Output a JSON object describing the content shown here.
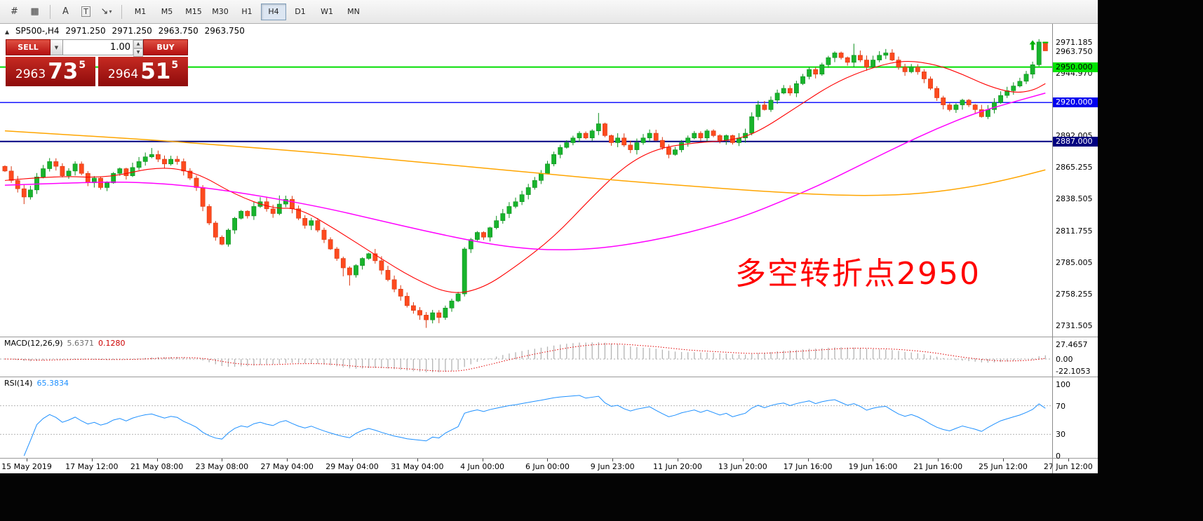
{
  "toolbar": {
    "tools": [
      {
        "name": "crosshair-tool",
        "glyph": "#"
      },
      {
        "name": "grid-tool",
        "glyph": "▦"
      },
      {
        "name": "text-tool",
        "glyph": "A"
      },
      {
        "name": "label-tool",
        "glyph": "T"
      },
      {
        "name": "arrow-objects-tool",
        "glyph": "↘"
      }
    ],
    "caret_glyph": "▾",
    "timeframes": [
      "M1",
      "M5",
      "M15",
      "M30",
      "H1",
      "H4",
      "D1",
      "W1",
      "MN"
    ],
    "active_timeframe": "H4"
  },
  "header": {
    "collapse_icon": "▲",
    "symbol": "SP500-,H4",
    "open": "2971.250",
    "high": "2971.250",
    "low": "2963.750",
    "close": "2963.750"
  },
  "trade_panel": {
    "sell_label": "SELL",
    "buy_label": "BUY",
    "volume": "1.00",
    "dropdown_caret": "▼",
    "up_glyph": "▲",
    "down_glyph": "▼",
    "bid": {
      "main": "2963",
      "big": "73",
      "pip": "5"
    },
    "ask": {
      "main": "2964",
      "big": "51",
      "pip": "5"
    },
    "panel_red": "#b01010"
  },
  "annotation": {
    "text": "多空转折点2950",
    "color": "#ff0000"
  },
  "hlines": [
    {
      "price": 2950.0,
      "label": "2950.000",
      "line_color": "#00dd00",
      "tag_bg": "#00e400",
      "tag_color": "#000000",
      "width": 2
    },
    {
      "price": 2920.0,
      "label": "2920.000",
      "line_color": "#0000ff",
      "tag_bg": "#0000ee",
      "tag_color": "#ffffff",
      "width": 1.4
    },
    {
      "price": 2887.0,
      "label": "2887.000",
      "line_color": "#000080",
      "tag_bg": "#000080",
      "tag_color": "#ffffff",
      "width": 2
    }
  ],
  "price_axis": {
    "ticks": [
      {
        "label": "2971.185",
        "price": 2971.185
      },
      {
        "label": "2963.750",
        "price": 2963.75
      },
      {
        "label": "2944.970",
        "price": 2944.97
      },
      {
        "label": "2892.005",
        "price": 2892.005
      },
      {
        "label": "2865.255",
        "price": 2865.255
      },
      {
        "label": "2838.505",
        "price": 2838.505
      },
      {
        "label": "2811.755",
        "price": 2811.755
      },
      {
        "label": "2785.005",
        "price": 2785.005
      },
      {
        "label": "2758.255",
        "price": 2758.255
      },
      {
        "label": "2731.505",
        "price": 2731.505
      }
    ]
  },
  "indicators": {
    "macd": {
      "name": "MACD(12,26,9)",
      "value_main": "5.6371",
      "value_signal": "0.1280",
      "axis_labels": [
        "27.4657",
        "0.00",
        "-22.1053"
      ],
      "histogram_color": "#b4b4b4",
      "signal_color": "#e00000",
      "params": [
        12,
        26,
        9
      ]
    },
    "rsi": {
      "name": "RSI(14)",
      "value": "65.3834",
      "axis_labels": [
        "100",
        "70",
        "30",
        "0"
      ],
      "levels": [
        70,
        30
      ],
      "line_color": "#1e90ff",
      "period": 14
    }
  },
  "time_axis": [
    "15 May 2019",
    "17 May 12:00",
    "21 May 08:00",
    "23 May 08:00",
    "27 May 04:00",
    "29 May 04:00",
    "31 May 04:00",
    "4 Jun 00:00",
    "6 Jun 00:00",
    "9 Jun 23:00",
    "11 Jun 20:00",
    "13 Jun 20:00",
    "17 Jun 16:00",
    "19 Jun 16:00",
    "21 Jun 16:00",
    "25 Jun 12:00",
    "27 Jun 12:00"
  ],
  "chart_data": {
    "type": "candlestick",
    "symbol": "SP500-",
    "period": "H4",
    "candle_count": 164,
    "visible_price_range": [
      2722,
      2984
    ],
    "bull_color": "#18b42c",
    "bear_color": "#fd4a1e",
    "current_bar": {
      "open": 2971.25,
      "high": 2971.25,
      "low": 2963.75,
      "close": 2963.75
    },
    "closes": [
      2862,
      2854,
      2847,
      2840,
      2846,
      2857,
      2864,
      2870,
      2866,
      2858,
      2862,
      2868,
      2860,
      2852,
      2856,
      2848,
      2852,
      2860,
      2864,
      2858,
      2865,
      2870,
      2874,
      2876,
      2872,
      2868,
      2872,
      2870,
      2862,
      2856,
      2848,
      2832,
      2818,
      2806,
      2800,
      2812,
      2822,
      2828,
      2824,
      2832,
      2836,
      2830,
      2826,
      2834,
      2838,
      2830,
      2822,
      2816,
      2820,
      2812,
      2804,
      2796,
      2788,
      2780,
      2774,
      2782,
      2788,
      2792,
      2786,
      2778,
      2770,
      2762,
      2756,
      2748,
      2744,
      2740,
      2736,
      2742,
      2738,
      2746,
      2752,
      2758,
      2796,
      2804,
      2810,
      2806,
      2814,
      2820,
      2826,
      2832,
      2836,
      2842,
      2848,
      2854,
      2860,
      2868,
      2876,
      2882,
      2886,
      2890,
      2894,
      2890,
      2896,
      2902,
      2892,
      2886,
      2890,
      2884,
      2880,
      2886,
      2890,
      2894,
      2888,
      2882,
      2876,
      2880,
      2886,
      2890,
      2894,
      2890,
      2896,
      2892,
      2888,
      2892,
      2886,
      2890,
      2894,
      2908,
      2918,
      2914,
      2922,
      2928,
      2932,
      2928,
      2936,
      2942,
      2948,
      2944,
      2952,
      2958,
      2962,
      2958,
      2954,
      2960,
      2956,
      2950,
      2956,
      2960,
      2962,
      2956,
      2950,
      2946,
      2950,
      2946,
      2940,
      2932,
      2924,
      2918,
      2914,
      2918,
      2922,
      2918,
      2914,
      2908,
      2914,
      2920,
      2926,
      2930,
      2934,
      2938,
      2944,
      2952,
      2971.25,
      2963.75
    ],
    "moving_averages": [
      {
        "name": "fast-ma-red",
        "color": "#ff0000",
        "width": 1.1,
        "points": [
          [
            0,
            2854
          ],
          [
            8,
            2858
          ],
          [
            16,
            2856
          ],
          [
            24,
            2866
          ],
          [
            30,
            2861
          ],
          [
            36,
            2842
          ],
          [
            42,
            2830
          ],
          [
            46,
            2831
          ],
          [
            52,
            2812
          ],
          [
            58,
            2791
          ],
          [
            64,
            2771
          ],
          [
            70,
            2757
          ],
          [
            75,
            2763
          ],
          [
            80,
            2781
          ],
          [
            86,
            2806
          ],
          [
            92,
            2840
          ],
          [
            97,
            2866
          ],
          [
            102,
            2881
          ],
          [
            108,
            2886
          ],
          [
            114,
            2888
          ],
          [
            118,
            2895
          ],
          [
            124,
            2916
          ],
          [
            130,
            2937
          ],
          [
            136,
            2950
          ],
          [
            141,
            2956
          ],
          [
            146,
            2952
          ],
          [
            150,
            2944
          ],
          [
            154,
            2934
          ],
          [
            158,
            2928
          ],
          [
            161,
            2930
          ],
          [
            163,
            2936
          ]
        ]
      },
      {
        "name": "mid-ma-magenta",
        "color": "#ff00ff",
        "width": 1.5,
        "points": [
          [
            0,
            2850
          ],
          [
            10,
            2852
          ],
          [
            20,
            2853
          ],
          [
            30,
            2849
          ],
          [
            40,
            2841
          ],
          [
            50,
            2831
          ],
          [
            58,
            2821
          ],
          [
            66,
            2811
          ],
          [
            74,
            2802
          ],
          [
            80,
            2797
          ],
          [
            86,
            2795
          ],
          [
            92,
            2796
          ],
          [
            98,
            2800
          ],
          [
            104,
            2806
          ],
          [
            110,
            2814
          ],
          [
            116,
            2824
          ],
          [
            122,
            2837
          ],
          [
            128,
            2851
          ],
          [
            134,
            2867
          ],
          [
            140,
            2883
          ],
          [
            146,
            2898
          ],
          [
            152,
            2911
          ],
          [
            157,
            2919
          ],
          [
            163,
            2928
          ]
        ]
      },
      {
        "name": "slow-ma-orange",
        "color": "#ffa500",
        "width": 1.5,
        "points": [
          [
            0,
            2896
          ],
          [
            12,
            2892
          ],
          [
            24,
            2888
          ],
          [
            36,
            2883
          ],
          [
            48,
            2878
          ],
          [
            60,
            2872
          ],
          [
            72,
            2866
          ],
          [
            84,
            2860
          ],
          [
            96,
            2854
          ],
          [
            108,
            2849
          ],
          [
            118,
            2845
          ],
          [
            128,
            2842
          ],
          [
            136,
            2841
          ],
          [
            144,
            2843
          ],
          [
            152,
            2849
          ],
          [
            158,
            2856
          ],
          [
            163,
            2863
          ]
        ]
      }
    ]
  }
}
